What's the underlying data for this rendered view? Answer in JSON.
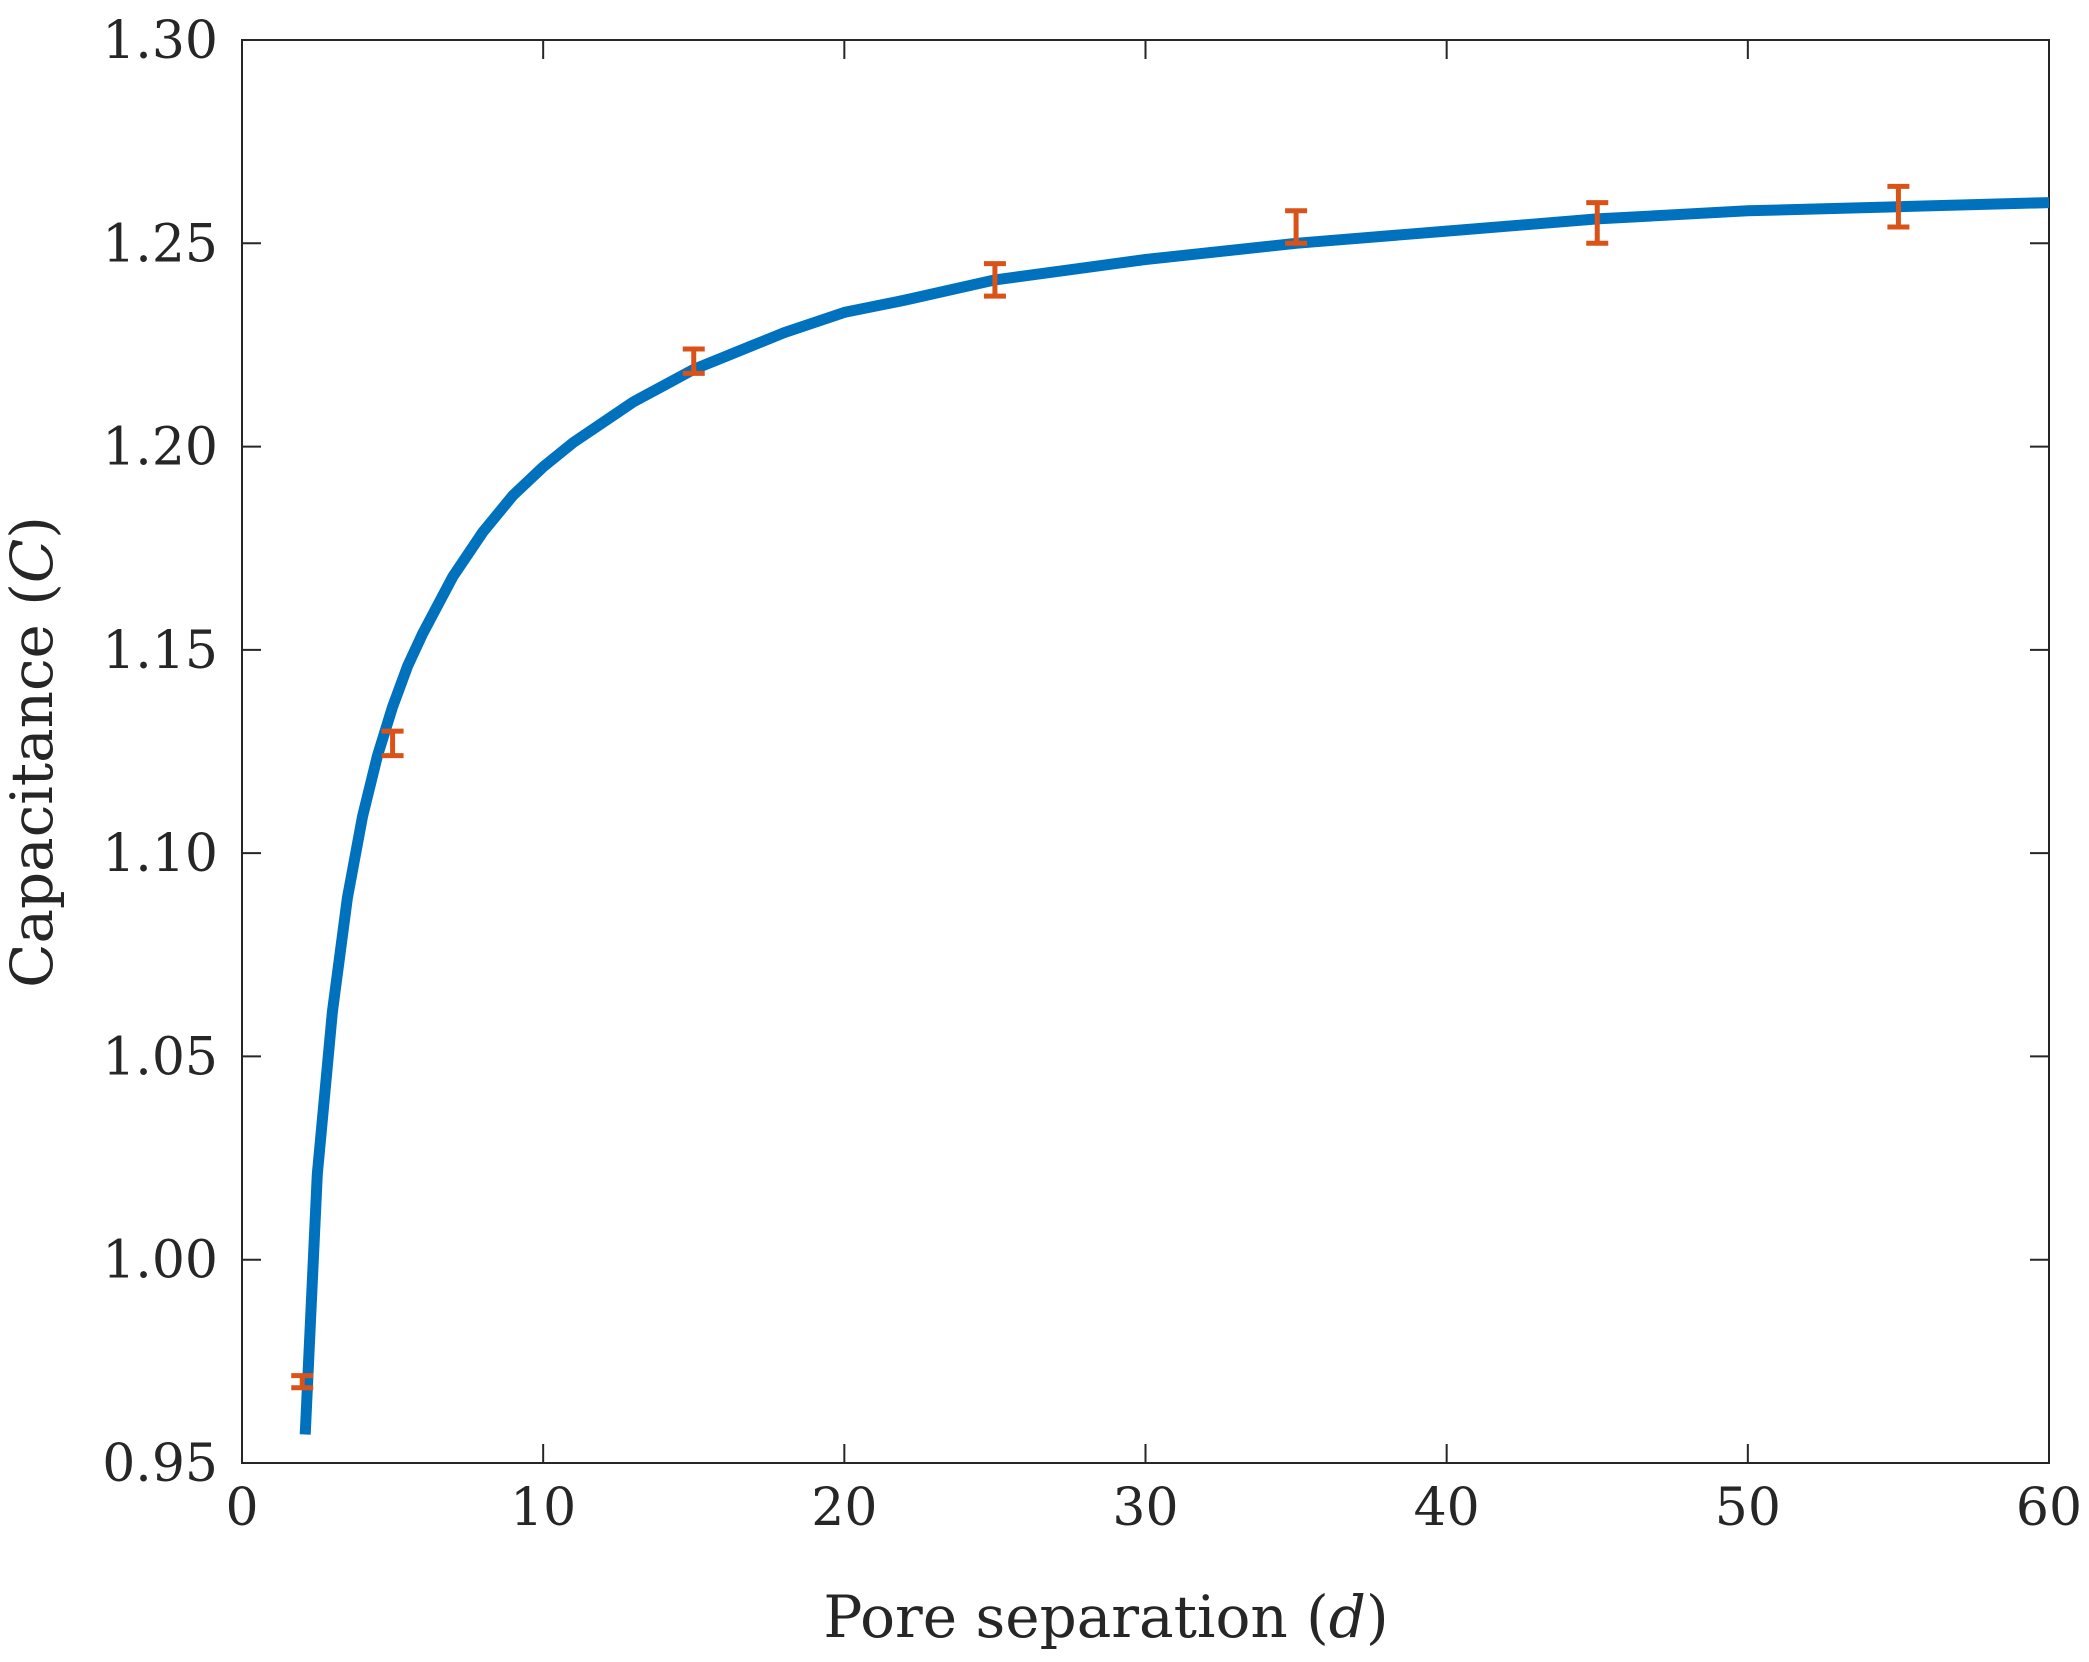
{
  "chart_data": {
    "type": "line",
    "title": "",
    "xlabel": "Pore separation (d)",
    "xlabel_parts": {
      "text": "Pore separation (",
      "var": "d",
      "close": ")"
    },
    "ylabel": "Capacitance (C)",
    "ylabel_parts": {
      "text": "Capacitance (",
      "var": "C",
      "close": ")"
    },
    "xlim": [
      0,
      60
    ],
    "ylim": [
      0.95,
      1.3
    ],
    "xticks": [
      0,
      10,
      20,
      30,
      40,
      50,
      60
    ],
    "xtick_labels": [
      "0",
      "10",
      "20",
      "30",
      "40",
      "50",
      "60"
    ],
    "yticks": [
      0.95,
      1.0,
      1.05,
      1.1,
      1.15,
      1.2,
      1.25,
      1.3
    ],
    "ytick_labels": [
      "0.95",
      "1.00",
      "1.05",
      "1.10",
      "1.15",
      "1.20",
      "1.25",
      "1.30"
    ],
    "grid": false,
    "legend": "none",
    "series": [
      {
        "kind": "line",
        "color": "#0072bd",
        "x": [
          2.1,
          2.5,
          3,
          3.5,
          4,
          4.5,
          5,
          5.5,
          6,
          7,
          8,
          9,
          10,
          11,
          12,
          13,
          14,
          15,
          16,
          17,
          18,
          20,
          22,
          25,
          28,
          30,
          35,
          40,
          45,
          50,
          55,
          60
        ],
        "y": [
          0.957,
          1.021,
          1.061,
          1.089,
          1.109,
          1.124,
          1.136,
          1.146,
          1.154,
          1.168,
          1.179,
          1.188,
          1.195,
          1.201,
          1.206,
          1.211,
          1.215,
          1.219,
          1.222,
          1.225,
          1.228,
          1.233,
          1.236,
          1.241,
          1.244,
          1.246,
          1.25,
          1.253,
          1.256,
          1.258,
          1.259,
          1.26
        ]
      },
      {
        "kind": "errorbar",
        "color": "#d95319",
        "x": [
          2,
          5,
          15,
          25,
          35,
          45,
          55
        ],
        "y": [
          0.97,
          1.127,
          1.221,
          1.241,
          1.254,
          1.255,
          1.259
        ],
        "err": [
          0.0015,
          0.003,
          0.003,
          0.004,
          0.004,
          0.005,
          0.005
        ]
      }
    ]
  }
}
